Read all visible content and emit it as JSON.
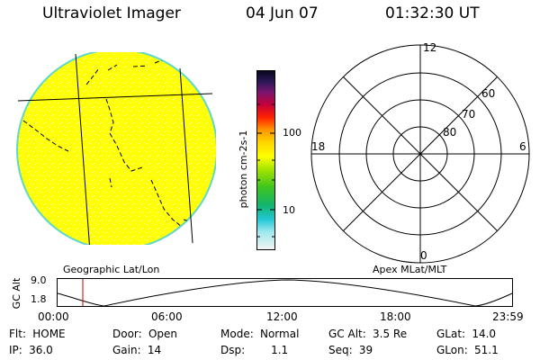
{
  "header": {
    "instrument": "Ultraviolet Imager",
    "date": "04 Jun 07",
    "time": "01:32:30 UT"
  },
  "colorbar": {
    "unit_label": "photon cm-2s-1",
    "ticks": [
      "100",
      "10"
    ],
    "scale": "log"
  },
  "polar_plot": {
    "mlt_labels": [
      "12",
      "18",
      "6",
      "0"
    ],
    "mlat_labels": [
      "60",
      "70",
      "80"
    ],
    "caption": "Apex MLat/MLT"
  },
  "earth_image": {
    "caption": "Geographic Lat/Lon",
    "disk_color": "#ffff00",
    "limb_color": "#5ed8c8"
  },
  "altitude_plot": {
    "axis_label": "GC Alt",
    "y_labels": [
      "9.0",
      "1.8"
    ],
    "x_labels": [
      "00:00",
      "06:00",
      "12:00",
      "18:00",
      "23:59"
    ],
    "marker_color": "#c00000"
  },
  "status": {
    "flt": {
      "label": "Flt:",
      "value": "HOME"
    },
    "ip": {
      "label": "IP:",
      "value": "36.0"
    },
    "door": {
      "label": "Door:",
      "value": "Open"
    },
    "gain": {
      "label": "Gain:",
      "value": "14"
    },
    "mode": {
      "label": "Mode:",
      "value": "Normal"
    },
    "dsp": {
      "label": "Dsp:",
      "value": "1.1"
    },
    "gcalt": {
      "label": "GC Alt:",
      "value": "3.5 Re"
    },
    "seq": {
      "label": "Seq:",
      "value": "39"
    },
    "glat": {
      "label": "GLat:",
      "value": "14.0"
    },
    "glon": {
      "label": "GLon:",
      "value": "51.1"
    }
  }
}
